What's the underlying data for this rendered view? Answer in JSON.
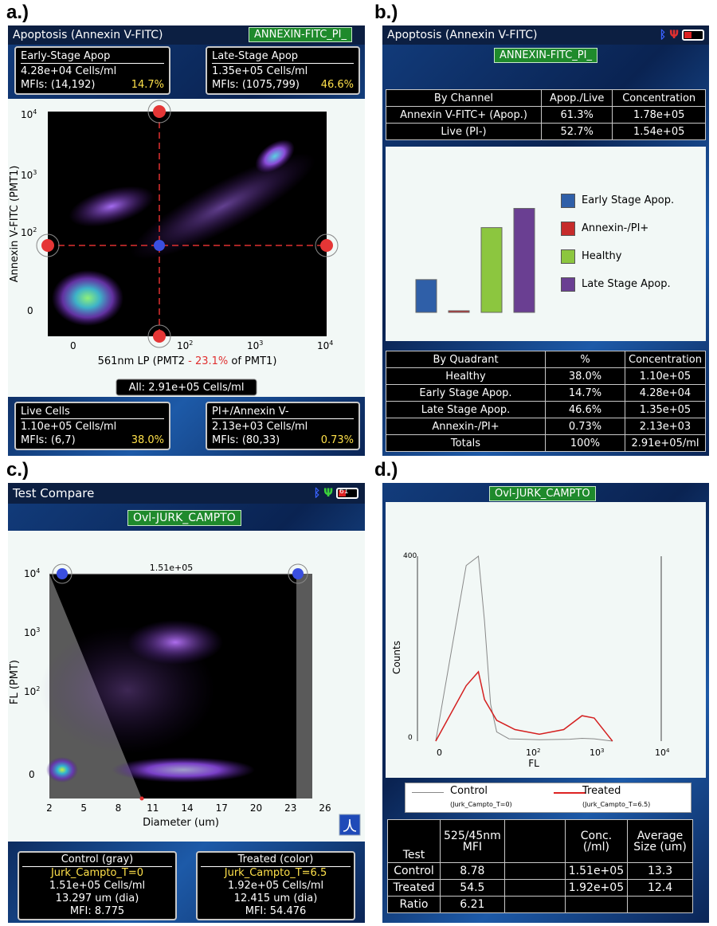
{
  "panels": {
    "a": "a.)",
    "b": "b.)",
    "c": "c.)",
    "d": "d.)"
  },
  "a": {
    "title": "Apoptosis (Annexin V-FITC)",
    "tag": "ANNEXIN-FITC_PI_",
    "early": {
      "title": "Early-Stage Apop",
      "conc": "4.28e+04 Cells/ml",
      "mfi_label": "MFIs:",
      "mfi": "(14,192)",
      "pct": "14.7%"
    },
    "late": {
      "title": "Late-Stage Apop",
      "conc": "1.35e+05 Cells/ml",
      "mfi_label": "MFIs:",
      "mfi": "(1075,799)",
      "pct": "46.6%"
    },
    "live": {
      "title": "Live Cells",
      "conc": "1.10e+05 Cells/ml",
      "mfi_label": "MFIs:",
      "mfi": "(6,7)",
      "pct": "38.0%"
    },
    "pi": {
      "title": "PI+/Annexin V-",
      "conc": "2.13e+03 Cells/ml",
      "mfi_label": "MFIs:",
      "mfi": "(80,33)",
      "pct": "0.73%"
    },
    "ylabel": "Annexin V-FITC (PMT1)",
    "xlabel_pre": "561nm LP (PMT2 ",
    "xlabel_red": "- 23.1%",
    "xlabel_post": " of PMT1)",
    "yticks": [
      "10",
      "10",
      "10",
      "0"
    ],
    "yticks_exp": [
      "4",
      "3",
      "2",
      ""
    ],
    "xticks": [
      "0",
      "10",
      "10",
      "10"
    ],
    "xticks_exp": [
      "",
      "2",
      "3",
      "4"
    ],
    "all": "All: 2.91e+05 Cells/ml"
  },
  "b": {
    "title": "Apoptosis (Annexin V-FITC)",
    "tag": "ANNEXIN-FITC_PI_",
    "channel_header": [
      "By Channel",
      "Apop./Live",
      "Concentration"
    ],
    "channel_rows": [
      [
        "Annexin V-FITC+ (Apop.)",
        "61.3%",
        "1.78e+05"
      ],
      [
        "Live (PI-)",
        "52.7%",
        "1.54e+05"
      ]
    ],
    "legend": [
      {
        "label": "Early Stage Apop.",
        "color": "#2f5fa8"
      },
      {
        "label": "Annexin-/PI+",
        "color": "#c62b2b"
      },
      {
        "label": "Healthy",
        "color": "#8cc63f"
      },
      {
        "label": "Late Stage Apop.",
        "color": "#6a3f92"
      }
    ],
    "bar_values": [
      14.7,
      0.73,
      38.0,
      46.6
    ],
    "quadrant_header": [
      "By Quadrant",
      "%",
      "Concentration"
    ],
    "quadrant_rows": [
      [
        "Healthy",
        "38.0%",
        "1.10e+05"
      ],
      [
        "Early Stage Apop.",
        "14.7%",
        "4.28e+04"
      ],
      [
        "Late Stage Apop.",
        "46.6%",
        "1.35e+05"
      ],
      [
        "Annexin-/PI+",
        "0.73%",
        "2.13e+03"
      ],
      [
        "Totals",
        "100%",
        "2.91e+05/ml"
      ]
    ]
  },
  "c": {
    "title": "Test Compare",
    "tag": "Ovl-JURK_CAMPTO",
    "top_label": "1.51e+05",
    "ylabel": "FL (PMT)",
    "xlabel": "Diameter (um)",
    "yticks": [
      "10",
      "10",
      "10",
      "0"
    ],
    "yticks_exp": [
      "4",
      "3",
      "2",
      ""
    ],
    "xticks": [
      "2",
      "5",
      "8",
      "11",
      "14",
      "17",
      "20",
      "23",
      "26"
    ],
    "control": {
      "title": "Control (gray)",
      "name": "Jurk_Campto_T=0",
      "conc": "1.51e+05 Cells/ml",
      "dia": "13.297 um (dia)",
      "mfi": "MFI: 8.775"
    },
    "treated": {
      "title": "Treated (color)",
      "name": "Jurk_Campto_T=6.5",
      "conc": "1.92e+05 Cells/ml",
      "dia": "12.415 um (dia)",
      "mfi": "MFI: 54.476"
    },
    "battery": "61"
  },
  "d": {
    "tag": "Ovl-JURK_CAMPTO",
    "ylabel": "Counts",
    "xlabel": "FL",
    "ymax": "400",
    "yzero": "0",
    "xticks": [
      "0",
      "10",
      "10",
      "10"
    ],
    "xticks_exp": [
      "",
      "2",
      "3",
      "4"
    ],
    "legend_control": "Control",
    "legend_control_sub": "(Jurk_Campto_T=0)",
    "legend_treated": "Treated",
    "legend_treated_sub": "(Jurk_Campto_T=6.5)",
    "table_header": [
      "Test",
      "525/45nm MFI",
      "",
      "Conc. (/ml)",
      "Average Size (um)"
    ],
    "table_rows": [
      [
        "Control",
        "8.78",
        "",
        "1.51e+05",
        "13.3"
      ],
      [
        "Treated",
        "54.5",
        "",
        "1.92e+05",
        "12.4"
      ],
      [
        "Ratio",
        "6.21",
        "",
        "",
        ""
      ]
    ]
  },
  "chart_data": [
    {
      "type": "bar",
      "categories": [
        "Early Stage Apop.",
        "Annexin-/PI+",
        "Healthy",
        "Late Stage Apop."
      ],
      "values": [
        14.7,
        0.73,
        38.0,
        46.6
      ],
      "title": "",
      "xlabel": "",
      "ylabel": ""
    },
    {
      "type": "line",
      "xlabel": "FL",
      "ylabel": "Counts",
      "ylim": [
        0,
        400
      ],
      "series": [
        {
          "name": "Control",
          "x": [
            0.3,
            0.8,
            1.0,
            1.1,
            1.2,
            1.3,
            1.5,
            2.0,
            2.5,
            2.7,
            2.9,
            3.2
          ],
          "y": [
            0,
            380,
            400,
            260,
            80,
            20,
            5,
            3,
            4,
            6,
            5,
            0
          ]
        },
        {
          "name": "Treated",
          "x": [
            0.3,
            0.8,
            1.0,
            1.1,
            1.3,
            1.6,
            2.0,
            2.4,
            2.7,
            2.9,
            3.2
          ],
          "y": [
            0,
            120,
            150,
            90,
            45,
            25,
            15,
            25,
            55,
            50,
            0
          ]
        }
      ]
    }
  ]
}
